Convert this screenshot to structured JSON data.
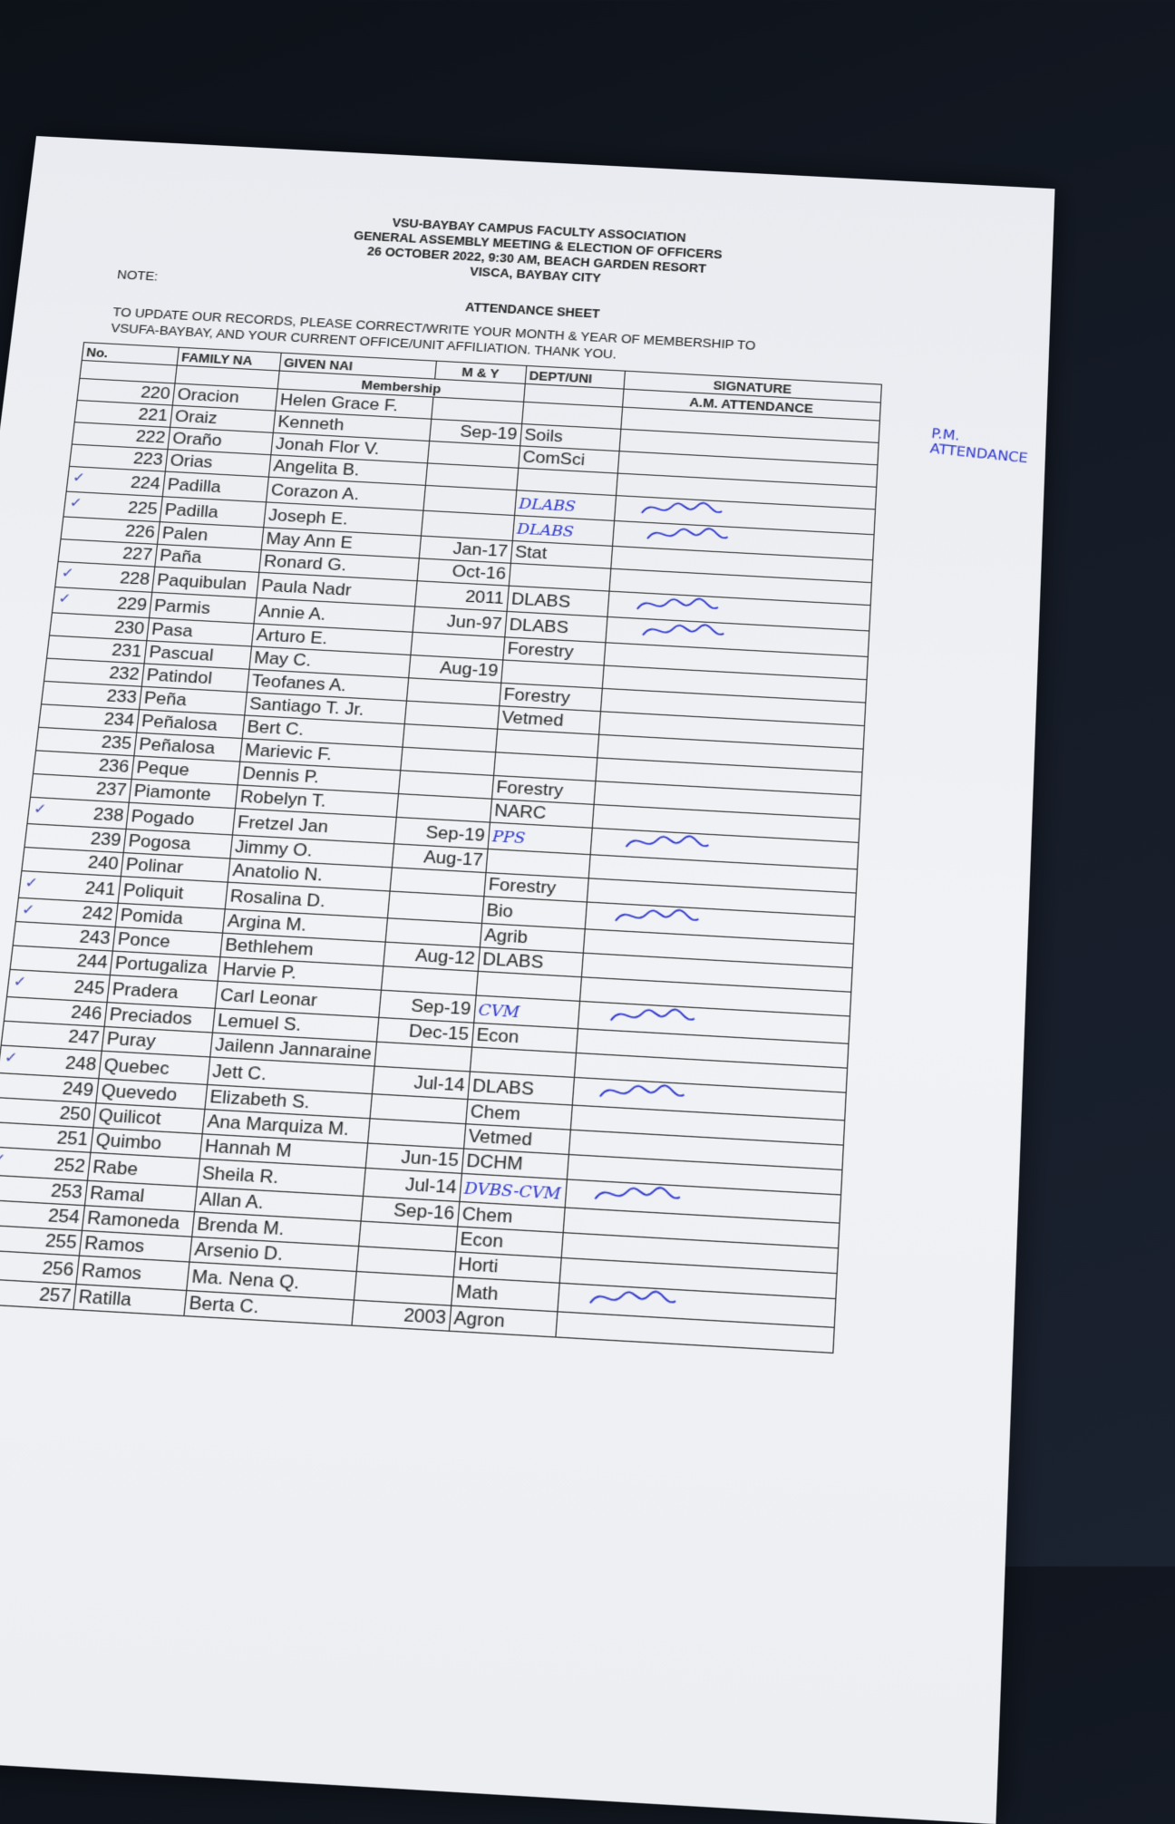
{
  "document": {
    "header": [
      "VSU-BAYBAY CAMPUS FACULTY ASSOCIATION",
      "GENERAL ASSEMBLY MEETING & ELECTION OF OFFICERS",
      "26 OCTOBER 2022, 9:30 AM, BEACH GARDEN RESORT",
      "VISCA, BAYBAY CITY"
    ],
    "sheet_title": "ATTENDANCE SHEET",
    "note_label": "NOTE:",
    "note_lines": [
      "TO UPDATE OUR RECORDS, PLEASE CORRECT/WRITE YOUR MONTH & YEAR OF MEMBERSHIP TO",
      "VSUFA-BAYBAY, AND YOUR CURRENT OFFICE/UNIT AFFILIATION. THANK YOU."
    ],
    "columns": {
      "no": "No.",
      "family": "FAMILY NA",
      "given": "GIVEN NAI",
      "my": "M & Y",
      "membership": "Membership",
      "dept": "DEPT/UNI",
      "signature": "SIGNATURE",
      "am": "A.M. ATTENDANCE"
    },
    "pm_attendance_note": "P.M. ATTENDANCE",
    "ink_color": "#2b34c9",
    "rows": [
      {
        "no": "220",
        "family": "Oracion",
        "given": "Helen Grace F.",
        "my": "",
        "dept": ""
      },
      {
        "no": "221",
        "family": "Oraiz",
        "given": "Kenneth",
        "my": "Sep-19",
        "dept": "Soils"
      },
      {
        "no": "222",
        "family": "Oraño",
        "given": "Jonah Flor V.",
        "my": "",
        "dept": "ComSci"
      },
      {
        "no": "223",
        "family": "Orias",
        "given": "Angelita B.",
        "my": "",
        "dept": ""
      },
      {
        "no": "224",
        "family": "Padilla",
        "given": "Corazon A.",
        "my": "",
        "dept": "DLABS",
        "hand_dept": true,
        "checked": true,
        "signed": true
      },
      {
        "no": "225",
        "family": "Padilla",
        "given": "Joseph E.",
        "my": "",
        "dept": "DLABS",
        "hand_dept": true,
        "checked": true,
        "signed": true
      },
      {
        "no": "226",
        "family": "Palen",
        "given": "May Ann E",
        "my": "Jan-17",
        "dept": "Stat"
      },
      {
        "no": "227",
        "family": "Paña",
        "given": "Ronard G.",
        "my": "Oct-16",
        "dept": ""
      },
      {
        "no": "228",
        "family": "Paquibulan",
        "given": "Paula Nadr",
        "my": "2011",
        "dept": "DLABS",
        "checked": true,
        "signed": true
      },
      {
        "no": "229",
        "family": "Parmis",
        "given": "Annie A.",
        "my": "Jun-97",
        "dept": "DLABS",
        "checked": true,
        "signed": true
      },
      {
        "no": "230",
        "family": "Pasa",
        "given": "Arturo E.",
        "my": "",
        "dept": "Forestry"
      },
      {
        "no": "231",
        "family": "Pascual",
        "given": "May C.",
        "my": "Aug-19",
        "dept": ""
      },
      {
        "no": "232",
        "family": "Patindol",
        "given": "Teofanes A.",
        "my": "",
        "dept": "Forestry"
      },
      {
        "no": "233",
        "family": "Peña",
        "given": "Santiago T. Jr.",
        "my": "",
        "dept": "Vetmed"
      },
      {
        "no": "234",
        "family": "Peñalosa",
        "given": "Bert C.",
        "my": "",
        "dept": ""
      },
      {
        "no": "235",
        "family": "Peñalosa",
        "given": "Marievic F.",
        "my": "",
        "dept": ""
      },
      {
        "no": "236",
        "family": "Peque",
        "given": "Dennis P.",
        "my": "",
        "dept": "Forestry"
      },
      {
        "no": "237",
        "family": "Piamonte",
        "given": "Robelyn T.",
        "my": "",
        "dept": "NARC"
      },
      {
        "no": "238",
        "family": "Pogado",
        "given": "Fretzel Jan",
        "my": "Sep-19",
        "dept": "PPS",
        "hand_dept": true,
        "checked": true,
        "signed": true
      },
      {
        "no": "239",
        "family": "Pogosa",
        "given": "Jimmy O.",
        "my": "Aug-17",
        "dept": ""
      },
      {
        "no": "240",
        "family": "Polinar",
        "given": "Anatolio N.",
        "my": "",
        "dept": "Forestry"
      },
      {
        "no": "241",
        "family": "Poliquit",
        "given": "Rosalina D.",
        "my": "",
        "dept": "Bio",
        "checked": true,
        "signed": true
      },
      {
        "no": "242",
        "family": "Pomida",
        "given": "Argina M.",
        "my": "",
        "dept": "Agrib",
        "checked": true
      },
      {
        "no": "243",
        "family": "Ponce",
        "given": "Bethlehem",
        "my": "Aug-12",
        "dept": "DLABS"
      },
      {
        "no": "244",
        "family": "Portugaliza",
        "given": "Harvie P.",
        "my": "",
        "dept": ""
      },
      {
        "no": "245",
        "family": "Pradera",
        "given": "Carl Leonar",
        "my": "Sep-19",
        "dept": "CVM",
        "hand_dept": true,
        "checked": true,
        "signed": true
      },
      {
        "no": "246",
        "family": "Preciados",
        "given": "Lemuel S.",
        "my": "Dec-15",
        "dept": "Econ"
      },
      {
        "no": "247",
        "family": "Puray",
        "given": "Jailenn Jannaraine",
        "my": "",
        "dept": ""
      },
      {
        "no": "248",
        "family": "Quebec",
        "given": "Jett C.",
        "my": "Jul-14",
        "dept": "DLABS",
        "checked": true,
        "signed": true
      },
      {
        "no": "249",
        "family": "Quevedo",
        "given": "Elizabeth S.",
        "my": "",
        "dept": "Chem"
      },
      {
        "no": "250",
        "family": "Quilicot",
        "given": "Ana Marquiza M.",
        "my": "",
        "dept": "Vetmed"
      },
      {
        "no": "251",
        "family": "Quimbo",
        "given": "Hannah M",
        "my": "Jun-15",
        "dept": "DCHM"
      },
      {
        "no": "252",
        "family": "Rabe",
        "given": "Sheila R.",
        "my": "Jul-14",
        "dept": "DVBS-CVM",
        "hand_dept": true,
        "checked": true,
        "signed": true
      },
      {
        "no": "253",
        "family": "Ramal",
        "given": "Allan A.",
        "my": "Sep-16",
        "dept": "Chem"
      },
      {
        "no": "254",
        "family": "Ramoneda",
        "given": "Brenda M.",
        "my": "",
        "dept": "Econ"
      },
      {
        "no": "255",
        "family": "Ramos",
        "given": "Arsenio D.",
        "my": "",
        "dept": "Horti"
      },
      {
        "no": "256",
        "family": "Ramos",
        "given": "Ma. Nena Q.",
        "my": "",
        "dept": "Math",
        "checked": true,
        "signed": true
      },
      {
        "no": "257",
        "family": "Ratilla",
        "given": "Berta C.",
        "my": "2003",
        "dept": "Agron",
        "checked": true
      }
    ]
  }
}
